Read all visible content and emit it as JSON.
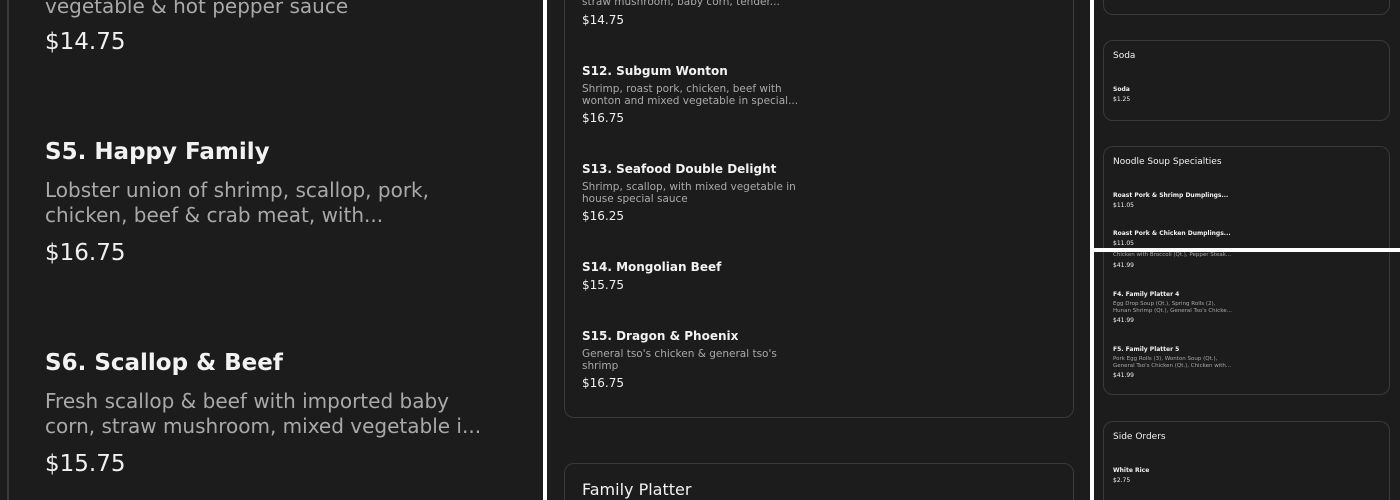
{
  "left": {
    "items": [
      {
        "title": "",
        "desc": [
          "vegetable & hot pepper sauce"
        ],
        "price": "$14.75"
      },
      {
        "title": "S5. Happy Family",
        "desc": [
          "Lobster union of shrimp, scallop, pork,",
          "chicken, beef & crab meat, with..."
        ],
        "price": "$16.75"
      },
      {
        "title": "S6. Scallop & Beef",
        "desc": [
          "Fresh scallop & beef with imported baby",
          "corn, straw mushroom, mixed vegetable i..."
        ],
        "price": "$15.75"
      }
    ]
  },
  "middle": {
    "items": [
      {
        "title": "",
        "desc": [
          "straw mushroom, baby corn, tender..."
        ],
        "price": "$14.75"
      },
      {
        "title": "S12. Subgum Wonton",
        "desc": [
          "Shrimp, roast pork, chicken, beef with",
          "wonton and mixed vegetable in special..."
        ],
        "price": "$16.75"
      },
      {
        "title": "S13. Seafood Double Delight",
        "desc": [
          "Shrimp, scallop, with mixed vegetable in",
          "house special sauce"
        ],
        "price": "$16.25"
      },
      {
        "title": "S14. Mongolian Beef",
        "desc": [],
        "price": "$15.75"
      },
      {
        "title": "S15. Dragon & Phoenix",
        "desc": [
          "General tso's chicken & general tso's",
          "shrimp"
        ],
        "price": "$16.75"
      }
    ],
    "next_section": "Family Platter"
  },
  "right_top": {
    "soda": {
      "heading": "Soda",
      "item": "Soda",
      "price": "$1.25"
    },
    "noodle": {
      "heading": "Noodle Soup Specialties",
      "items": [
        {
          "title": "Roast Pork & Shrimp Dumplings...",
          "price": "$11.05"
        },
        {
          "title": "Roast Pork & Chicken Dumplings...",
          "price": "$11.05"
        }
      ]
    }
  },
  "right_bottom": {
    "items": [
      {
        "title": "",
        "desc": [
          "Chicken with Broccoli (Qt.), Pepper Steak..."
        ],
        "price": "$41.99"
      },
      {
        "title": "F4. Family Platter 4",
        "desc": [
          "Egg Drop Soup (Qt.), Spring Rolls (2),",
          "Hunan Shrimp (Qt.), General Tso's Chicke..."
        ],
        "price": "$41.99"
      },
      {
        "title": "F5. Family Platter 5",
        "desc": [
          "Pork Egg Rolls (3), Wonton Soup (Qt.),",
          "General Tso's Chicken (Qt.), Chicken with..."
        ],
        "price": "$41.99"
      }
    ],
    "side": {
      "heading": "Side Orders",
      "item": "White Rice",
      "price": "$2.75"
    }
  }
}
